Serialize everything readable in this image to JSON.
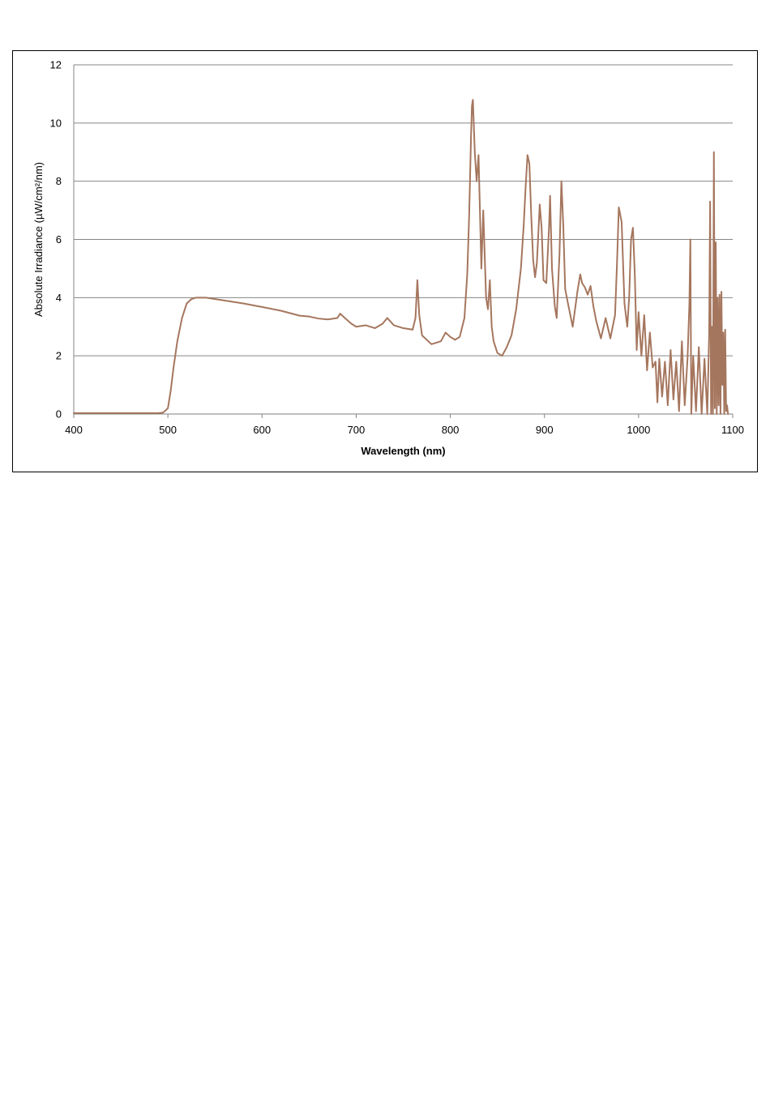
{
  "chart_data": {
    "type": "line",
    "xlabel": "Wavelength (nm)",
    "ylabel": "Absolute Irradiance (µW/cm²/nm)",
    "xlim": [
      400,
      1100
    ],
    "ylim": [
      0,
      12
    ],
    "x_ticks": [
      400,
      500,
      600,
      700,
      800,
      900,
      1000,
      1100
    ],
    "y_ticks": [
      0,
      2,
      4,
      6,
      8,
      10,
      12
    ],
    "x_tick_labels": [
      "400",
      "500",
      "600",
      "700",
      "800",
      "900",
      "1000",
      "1100"
    ],
    "y_tick_labels": [
      "0",
      "2",
      "4",
      "6",
      "8",
      "10",
      "12"
    ],
    "grid": "horizontal",
    "legend": "none",
    "line_color": "#a5765e",
    "series": [
      {
        "x": [
          400,
          450,
          490,
          495,
          500,
          503,
          506,
          510,
          515,
          520,
          525,
          530,
          540,
          560,
          580,
          600,
          620,
          640,
          650,
          660,
          670,
          680,
          683,
          688,
          695,
          700,
          710,
          720,
          728,
          733,
          740,
          750,
          760,
          763,
          765,
          767,
          770,
          780,
          790,
          795,
          800,
          805,
          810,
          815,
          818,
          820,
          822,
          823,
          824,
          826,
          828,
          830,
          833,
          835,
          838,
          840,
          842,
          844,
          846,
          850,
          855,
          860,
          865,
          870,
          875,
          878,
          880,
          882,
          884,
          886,
          888,
          890,
          892,
          895,
          897,
          899,
          902,
          905,
          906,
          908,
          911,
          913,
          916,
          918,
          920,
          922,
          925,
          930,
          935,
          938,
          940,
          943,
          946,
          949,
          952,
          955,
          960,
          965,
          970,
          975,
          977,
          979,
          982,
          985,
          988,
          990,
          992,
          994,
          996,
          998,
          1000,
          1003,
          1006,
          1009,
          1012,
          1015,
          1018,
          1020,
          1022,
          1025,
          1028,
          1031,
          1034,
          1037,
          1040,
          1043,
          1046,
          1049,
          1052,
          1054,
          1055,
          1056,
          1058,
          1061,
          1064,
          1067,
          1070,
          1073,
          1075,
          1076,
          1077,
          1078,
          1079,
          1080,
          1081,
          1082,
          1083,
          1084,
          1085,
          1086,
          1087,
          1088,
          1089,
          1090,
          1091,
          1092,
          1093,
          1094,
          1095
        ],
        "values": [
          0.03,
          0.03,
          0.03,
          0.05,
          0.2,
          0.8,
          1.6,
          2.5,
          3.3,
          3.8,
          3.95,
          4.0,
          4.0,
          3.9,
          3.8,
          3.68,
          3.55,
          3.38,
          3.35,
          3.28,
          3.25,
          3.3,
          3.45,
          3.3,
          3.1,
          3.0,
          3.05,
          2.95,
          3.1,
          3.3,
          3.05,
          2.95,
          2.9,
          3.3,
          4.6,
          3.4,
          2.7,
          2.4,
          2.5,
          2.8,
          2.65,
          2.55,
          2.65,
          3.3,
          4.8,
          6.8,
          9.5,
          10.6,
          10.8,
          9.0,
          8.0,
          8.9,
          5.0,
          7.0,
          4.0,
          3.6,
          4.6,
          3.0,
          2.5,
          2.1,
          2.0,
          2.3,
          2.7,
          3.6,
          5.0,
          6.5,
          7.8,
          8.9,
          8.6,
          6.8,
          5.3,
          4.7,
          5.2,
          7.2,
          6.4,
          4.6,
          4.5,
          6.5,
          7.5,
          5.0,
          3.7,
          3.3,
          5.5,
          8.0,
          6.5,
          4.3,
          3.8,
          3.0,
          4.2,
          4.8,
          4.5,
          4.35,
          4.1,
          4.4,
          3.7,
          3.2,
          2.6,
          3.3,
          2.6,
          3.4,
          5.1,
          7.1,
          6.6,
          3.8,
          3.0,
          4.0,
          6.0,
          6.4,
          4.8,
          2.2,
          3.5,
          2.0,
          3.4,
          1.5,
          2.8,
          1.6,
          1.8,
          0.4,
          1.9,
          0.6,
          1.8,
          0.3,
          2.2,
          0.5,
          1.8,
          0.1,
          2.5,
          0.3,
          1.9,
          3.8,
          6.0,
          0.0,
          2.0,
          0.1,
          2.3,
          0.0,
          1.9,
          0.0,
          2.8,
          7.3,
          0.0,
          3.0,
          0.0,
          9.0,
          0.2,
          5.9,
          0.0,
          4.0,
          0.3,
          4.1,
          0.0,
          4.2,
          1.0,
          2.8,
          0.0,
          2.9,
          0.1,
          0.3,
          0.0
        ]
      }
    ]
  }
}
